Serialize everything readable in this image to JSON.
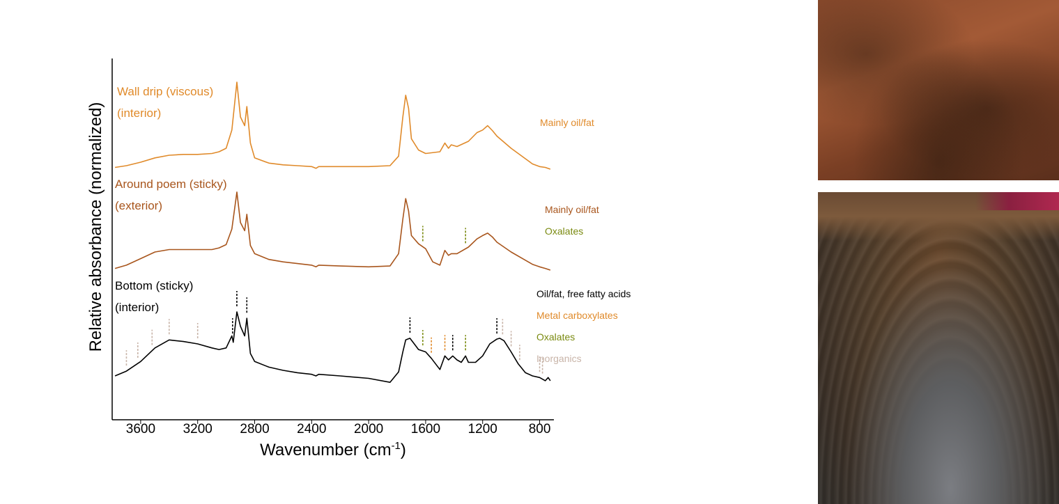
{
  "chart_data": {
    "type": "line",
    "title": "",
    "xlabel": "Wavenumber (cm",
    "xlabel_sup": "-1",
    "xlabel_end": ")",
    "ylabel": "Relative absorbance (normalized)",
    "xlim": [
      3800,
      700
    ],
    "x_reversed": true,
    "xticks": [
      3600,
      3200,
      2800,
      2400,
      2000,
      1600,
      1200,
      800
    ],
    "colors": {
      "wall": "#e08a2a",
      "poem": "#a8551c",
      "bottom": "#000000",
      "oxalate": "#7a8a10",
      "carboxylate": "#e08a2a",
      "inorganic": "#c8b4a8"
    },
    "series": [
      {
        "key": "wall",
        "label_line1": "Wall drip (viscous)",
        "label_line2": "(interior)",
        "annotations": [
          "Mainly oil/fat"
        ],
        "annotation_colors": [
          "#e08a2a"
        ],
        "points": [
          [
            3780,
            0.02
          ],
          [
            3700,
            0.04
          ],
          [
            3600,
            0.08
          ],
          [
            3500,
            0.13
          ],
          [
            3400,
            0.16
          ],
          [
            3300,
            0.17
          ],
          [
            3200,
            0.17
          ],
          [
            3100,
            0.18
          ],
          [
            3050,
            0.2
          ],
          [
            3000,
            0.24
          ],
          [
            2960,
            0.45
          ],
          [
            2925,
            1.0
          ],
          [
            2900,
            0.6
          ],
          [
            2870,
            0.5
          ],
          [
            2855,
            0.72
          ],
          [
            2830,
            0.3
          ],
          [
            2800,
            0.13
          ],
          [
            2700,
            0.07
          ],
          [
            2600,
            0.05
          ],
          [
            2500,
            0.04
          ],
          [
            2400,
            0.03
          ],
          [
            2370,
            0.01
          ],
          [
            2350,
            0.03
          ],
          [
            2200,
            0.03
          ],
          [
            2000,
            0.03
          ],
          [
            1850,
            0.04
          ],
          [
            1790,
            0.15
          ],
          [
            1760,
            0.6
          ],
          [
            1740,
            0.85
          ],
          [
            1720,
            0.7
          ],
          [
            1700,
            0.35
          ],
          [
            1650,
            0.22
          ],
          [
            1600,
            0.18
          ],
          [
            1500,
            0.2
          ],
          [
            1465,
            0.3
          ],
          [
            1440,
            0.24
          ],
          [
            1420,
            0.28
          ],
          [
            1380,
            0.26
          ],
          [
            1300,
            0.32
          ],
          [
            1240,
            0.42
          ],
          [
            1200,
            0.45
          ],
          [
            1165,
            0.5
          ],
          [
            1130,
            0.44
          ],
          [
            1100,
            0.38
          ],
          [
            1000,
            0.24
          ],
          [
            900,
            0.12
          ],
          [
            850,
            0.06
          ],
          [
            800,
            0.03
          ],
          [
            760,
            0.02
          ],
          [
            725,
            0.0
          ]
        ]
      },
      {
        "key": "poem",
        "label_line1": "Around poem (sticky)",
        "label_line2": "(exterior)",
        "annotations": [
          "Mainly oil/fat",
          "Oxalates"
        ],
        "annotation_colors": [
          "#a8551c",
          "#7a8a10"
        ],
        "points": [
          [
            3780,
            0.02
          ],
          [
            3700,
            0.06
          ],
          [
            3600,
            0.14
          ],
          [
            3500,
            0.22
          ],
          [
            3400,
            0.25
          ],
          [
            3300,
            0.25
          ],
          [
            3200,
            0.25
          ],
          [
            3100,
            0.25
          ],
          [
            3050,
            0.27
          ],
          [
            3000,
            0.31
          ],
          [
            2960,
            0.5
          ],
          [
            2925,
            0.95
          ],
          [
            2900,
            0.58
          ],
          [
            2870,
            0.48
          ],
          [
            2855,
            0.68
          ],
          [
            2830,
            0.3
          ],
          [
            2800,
            0.2
          ],
          [
            2700,
            0.13
          ],
          [
            2600,
            0.1
          ],
          [
            2500,
            0.08
          ],
          [
            2400,
            0.06
          ],
          [
            2370,
            0.04
          ],
          [
            2350,
            0.06
          ],
          [
            2200,
            0.05
          ],
          [
            2000,
            0.04
          ],
          [
            1850,
            0.05
          ],
          [
            1790,
            0.2
          ],
          [
            1760,
            0.62
          ],
          [
            1740,
            0.87
          ],
          [
            1720,
            0.72
          ],
          [
            1700,
            0.42
          ],
          [
            1650,
            0.32
          ],
          [
            1600,
            0.26
          ],
          [
            1550,
            0.1
          ],
          [
            1500,
            0.06
          ],
          [
            1465,
            0.24
          ],
          [
            1440,
            0.18
          ],
          [
            1420,
            0.2
          ],
          [
            1380,
            0.2
          ],
          [
            1300,
            0.28
          ],
          [
            1240,
            0.38
          ],
          [
            1200,
            0.42
          ],
          [
            1165,
            0.45
          ],
          [
            1130,
            0.4
          ],
          [
            1100,
            0.34
          ],
          [
            1000,
            0.22
          ],
          [
            900,
            0.12
          ],
          [
            850,
            0.07
          ],
          [
            800,
            0.04
          ],
          [
            760,
            0.02
          ],
          [
            725,
            0.0
          ]
        ]
      },
      {
        "key": "bottom",
        "label_line1": "Bottom (sticky)",
        "label_line2": "(interior)",
        "annotations": [
          "Oil/fat, free fatty acids",
          "Metal carboxylates",
          "Oxalates",
          "Inorganics"
        ],
        "annotation_colors": [
          "#000000",
          "#e08a2a",
          "#7a8a10",
          "#c8b4a8"
        ],
        "points": [
          [
            3780,
            0.0
          ],
          [
            3700,
            0.06
          ],
          [
            3600,
            0.18
          ],
          [
            3500,
            0.35
          ],
          [
            3400,
            0.45
          ],
          [
            3300,
            0.43
          ],
          [
            3200,
            0.4
          ],
          [
            3100,
            0.35
          ],
          [
            3050,
            0.33
          ],
          [
            3000,
            0.35
          ],
          [
            2960,
            0.5
          ],
          [
            2950,
            0.42
          ],
          [
            2925,
            0.8
          ],
          [
            2900,
            0.62
          ],
          [
            2870,
            0.5
          ],
          [
            2855,
            0.72
          ],
          [
            2830,
            0.28
          ],
          [
            2800,
            0.18
          ],
          [
            2700,
            0.11
          ],
          [
            2600,
            0.07
          ],
          [
            2500,
            0.04
          ],
          [
            2400,
            0.02
          ],
          [
            2370,
            0.0
          ],
          [
            2350,
            0.02
          ],
          [
            2200,
            0.0
          ],
          [
            2000,
            -0.03
          ],
          [
            1850,
            -0.08
          ],
          [
            1790,
            0.05
          ],
          [
            1760,
            0.3
          ],
          [
            1740,
            0.45
          ],
          [
            1710,
            0.47
          ],
          [
            1680,
            0.4
          ],
          [
            1650,
            0.33
          ],
          [
            1600,
            0.3
          ],
          [
            1560,
            0.22
          ],
          [
            1500,
            0.08
          ],
          [
            1465,
            0.25
          ],
          [
            1440,
            0.2
          ],
          [
            1410,
            0.25
          ],
          [
            1380,
            0.2
          ],
          [
            1350,
            0.17
          ],
          [
            1320,
            0.25
          ],
          [
            1300,
            0.17
          ],
          [
            1250,
            0.17
          ],
          [
            1200,
            0.25
          ],
          [
            1150,
            0.4
          ],
          [
            1100,
            0.46
          ],
          [
            1080,
            0.47
          ],
          [
            1050,
            0.44
          ],
          [
            1000,
            0.3
          ],
          [
            950,
            0.15
          ],
          [
            900,
            0.04
          ],
          [
            850,
            0.0
          ],
          [
            800,
            -0.02
          ],
          [
            760,
            -0.06
          ],
          [
            740,
            -0.02
          ],
          [
            725,
            -0.06
          ]
        ]
      }
    ],
    "markers": [
      {
        "series": "poem",
        "type": "oxalate",
        "x": [
          1620,
          1320
        ]
      },
      {
        "series": "bottom",
        "type": "oilfat",
        "x": [
          2955,
          2925,
          2855,
          1710,
          1410,
          1100
        ]
      },
      {
        "series": "bottom",
        "type": "carboxylate",
        "x": [
          1560,
          1465
        ]
      },
      {
        "series": "bottom",
        "type": "oxalate",
        "x": [
          1620,
          1320
        ]
      },
      {
        "series": "bottom",
        "type": "inorganic",
        "x": [
          3700,
          3620,
          3520,
          3400,
          3200,
          1060,
          1000,
          940,
          800,
          780
        ]
      }
    ]
  }
}
